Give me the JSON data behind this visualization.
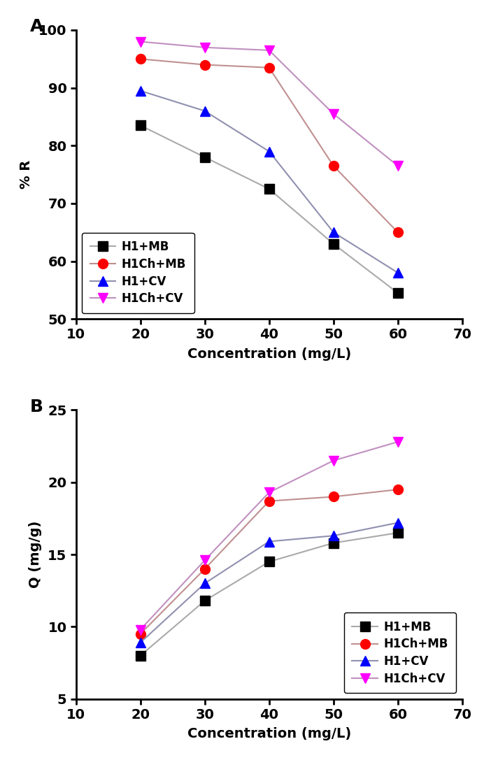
{
  "concentration": [
    20,
    30,
    40,
    50,
    60
  ],
  "panel_A": {
    "title": "A",
    "ylabel": "% R",
    "xlabel": "Concentration (mg/L)",
    "xlim": [
      10,
      70
    ],
    "ylim": [
      50,
      100
    ],
    "yticks": [
      50,
      60,
      70,
      80,
      90,
      100
    ],
    "xticks": [
      10,
      20,
      30,
      40,
      50,
      60,
      70
    ],
    "series": [
      {
        "label": "H1+MB",
        "values": [
          83.5,
          78.0,
          72.5,
          63.0,
          54.5
        ],
        "line_color": "#aaaaaa",
        "marker": "s",
        "marker_color": "black"
      },
      {
        "label": "H1Ch+MB",
        "values": [
          95.0,
          94.0,
          93.5,
          76.5,
          65.0
        ],
        "line_color": "#c09090",
        "marker": "o",
        "marker_color": "red"
      },
      {
        "label": "H1+CV",
        "values": [
          89.5,
          86.0,
          79.0,
          65.0,
          58.0
        ],
        "line_color": "#9090b0",
        "marker": "^",
        "marker_color": "blue"
      },
      {
        "label": "H1Ch+CV",
        "values": [
          98.0,
          97.0,
          96.5,
          85.5,
          76.5
        ],
        "line_color": "#c090c0",
        "marker": "v",
        "marker_color": "magenta"
      }
    ]
  },
  "panel_B": {
    "title": "B",
    "ylabel": "Q (mg/g)",
    "xlabel": "Concentration (mg/L)",
    "xlim": [
      10,
      70
    ],
    "ylim": [
      5,
      25
    ],
    "yticks": [
      5,
      10,
      15,
      20,
      25
    ],
    "xticks": [
      10,
      20,
      30,
      40,
      50,
      60,
      70
    ],
    "series": [
      {
        "label": "H1+MB",
        "values": [
          8.0,
          11.8,
          14.5,
          15.8,
          16.5
        ],
        "line_color": "#aaaaaa",
        "marker": "s",
        "marker_color": "black"
      },
      {
        "label": "H1Ch+MB",
        "values": [
          9.5,
          14.0,
          18.7,
          19.0,
          19.5
        ],
        "line_color": "#c09090",
        "marker": "o",
        "marker_color": "red"
      },
      {
        "label": "H1+CV",
        "values": [
          8.9,
          13.0,
          15.9,
          16.3,
          17.2
        ],
        "line_color": "#9090b0",
        "marker": "^",
        "marker_color": "blue"
      },
      {
        "label": "H1Ch+CV",
        "values": [
          9.8,
          14.6,
          19.3,
          21.5,
          22.8
        ],
        "line_color": "#c090c0",
        "marker": "v",
        "marker_color": "magenta"
      }
    ]
  }
}
